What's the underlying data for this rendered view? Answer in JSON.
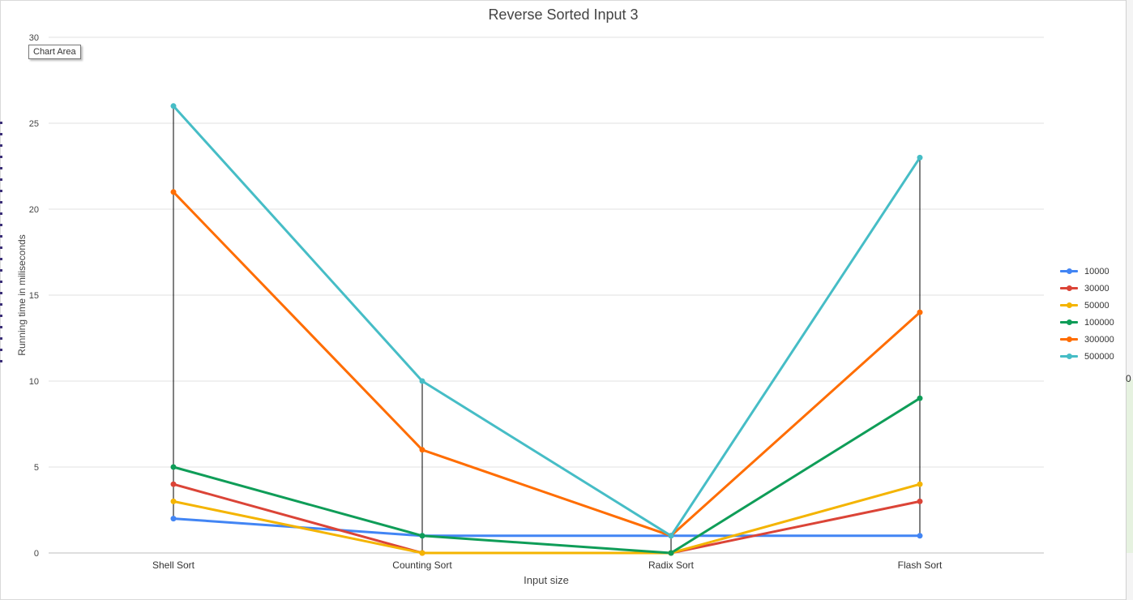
{
  "chart_data": {
    "type": "line",
    "title": "Reverse Sorted Input 3",
    "xlabel": "Input size",
    "ylabel": "Running time in miliseconds",
    "ylim": [
      0,
      30
    ],
    "yticks": [
      "0",
      "5",
      "10",
      "15",
      "20",
      "25",
      "30"
    ],
    "categories": [
      "Shell Sort",
      "Counting Sort",
      "Radix Sort",
      "Flash Sort"
    ],
    "grid": true,
    "legend_position": "right",
    "series": [
      {
        "name": "10000",
        "color": "#4285F4",
        "values": [
          2,
          1,
          1,
          1
        ]
      },
      {
        "name": "30000",
        "color": "#DB4437",
        "values": [
          4,
          0,
          0,
          3
        ]
      },
      {
        "name": "50000",
        "color": "#F4B400",
        "values": [
          3,
          0,
          0,
          4
        ]
      },
      {
        "name": "100000",
        "color": "#0F9D58",
        "values": [
          5,
          1,
          0,
          9
        ]
      },
      {
        "name": "300000",
        "color": "#FF6D00",
        "values": [
          21,
          6,
          1,
          14
        ]
      },
      {
        "name": "500000",
        "color": "#46BDC6",
        "values": [
          26,
          10,
          1,
          23
        ]
      }
    ]
  },
  "tooltip": {
    "label": "Chart Area"
  },
  "right_edge_glyph": "0"
}
